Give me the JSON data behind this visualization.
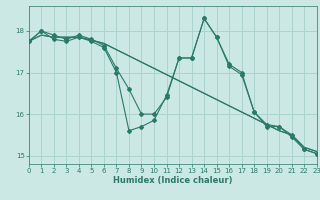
{
  "title": "",
  "xlabel": "Humidex (Indice chaleur)",
  "bg_color": "#cce8e4",
  "grid_color": "#aad4ce",
  "line_color": "#2a7a6a",
  "xlim": [
    0,
    23
  ],
  "ylim": [
    14.8,
    18.6
  ],
  "yticks": [
    15,
    16,
    17,
    18
  ],
  "xticks": [
    0,
    1,
    2,
    3,
    4,
    5,
    6,
    7,
    8,
    9,
    10,
    11,
    12,
    13,
    14,
    15,
    16,
    17,
    18,
    19,
    20,
    21,
    22,
    23
  ],
  "line1": [
    17.75,
    17.9,
    17.85,
    17.85,
    17.85,
    17.78,
    17.7,
    17.55,
    17.4,
    17.25,
    17.1,
    16.95,
    16.8,
    16.65,
    16.5,
    16.35,
    16.2,
    16.05,
    15.9,
    15.75,
    15.6,
    15.5,
    15.2,
    15.1
  ],
  "line2": [
    17.75,
    17.9,
    17.85,
    17.85,
    17.85,
    17.78,
    17.7,
    17.55,
    17.4,
    17.25,
    17.1,
    16.95,
    16.8,
    16.65,
    16.5,
    16.35,
    16.2,
    16.05,
    15.9,
    15.75,
    15.6,
    15.5,
    15.2,
    15.1
  ],
  "line3": [
    17.75,
    18.0,
    17.9,
    17.8,
    17.9,
    17.8,
    17.65,
    17.1,
    16.6,
    16.0,
    16.0,
    16.4,
    17.35,
    17.35,
    18.3,
    17.85,
    17.2,
    17.0,
    16.05,
    15.75,
    15.7,
    15.5,
    15.15,
    15.05
  ],
  "line4": [
    17.75,
    18.0,
    17.8,
    17.75,
    17.85,
    17.75,
    17.6,
    17.0,
    15.6,
    15.7,
    15.85,
    16.45,
    17.35,
    17.35,
    18.3,
    17.85,
    17.15,
    16.95,
    16.05,
    15.7,
    15.7,
    15.45,
    15.15,
    15.05
  ]
}
